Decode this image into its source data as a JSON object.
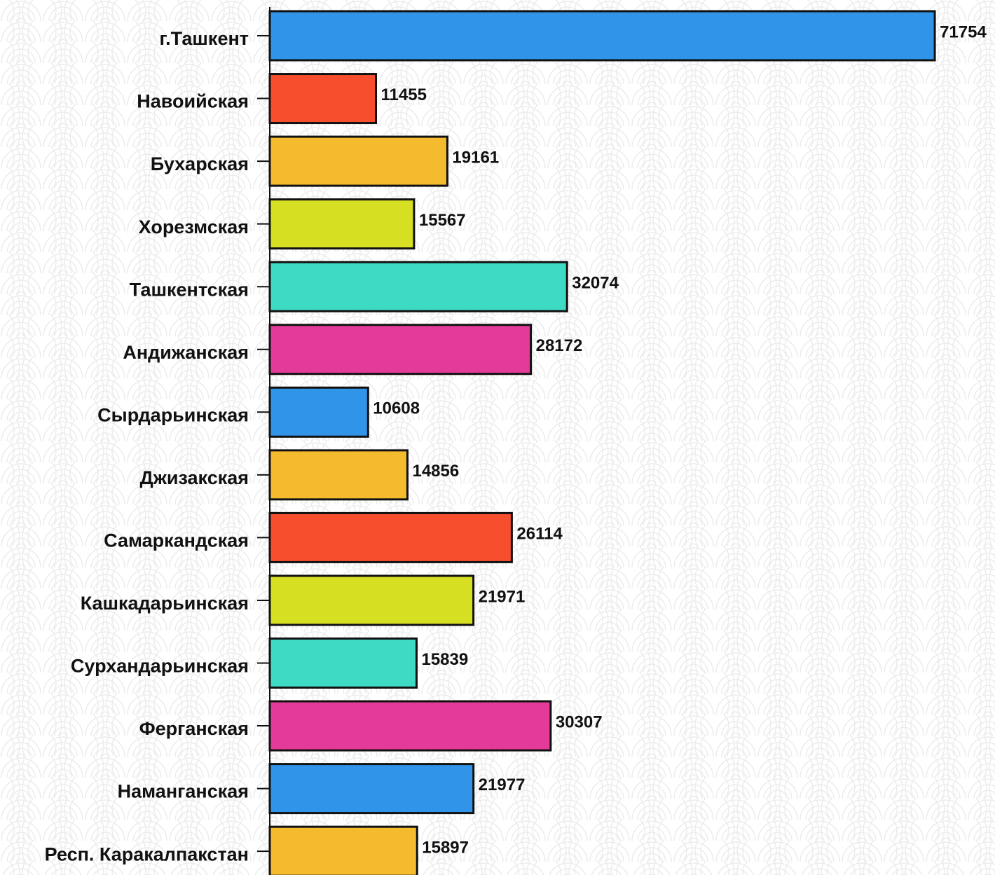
{
  "chart_data": {
    "type": "bar",
    "orientation": "horizontal",
    "categories": [
      "г.Ташкент",
      "Навоийская",
      "Бухарская",
      "Хорезмская",
      "Ташкентская",
      "Андижанская",
      "Сырдарьинская",
      "Джизакская",
      "Самаркандская",
      "Кашкадарьинская",
      "Сурхандарьинская",
      "Ферганская",
      "Наманганская",
      "Респ. Каракалпакстан"
    ],
    "values": [
      71754,
      11455,
      19161,
      15567,
      32074,
      28172,
      10608,
      14856,
      26114,
      21971,
      15839,
      30307,
      21977,
      15897
    ],
    "colors": [
      "#3094e8",
      "#f74f2e",
      "#f5bb2f",
      "#d7df23",
      "#3ddbc4",
      "#e43b9a",
      "#3094e8",
      "#f5bb2f",
      "#f74f2e",
      "#d7df23",
      "#3ddbc4",
      "#e43b9a",
      "#3094e8",
      "#f5bb2f"
    ],
    "xlim": [
      0,
      75000
    ]
  }
}
